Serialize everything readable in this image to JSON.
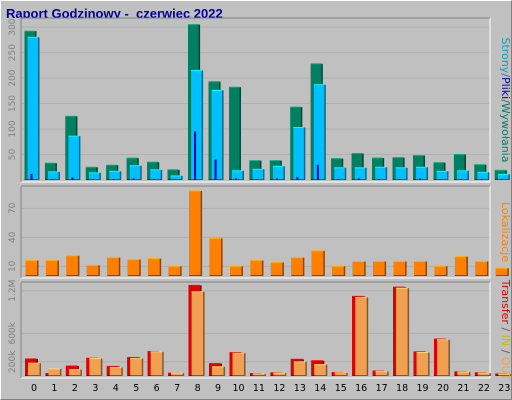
{
  "chart_data": {
    "type": "bar",
    "title": "Raport Godzinowy -  czerwiec 2022",
    "categories": [
      "0",
      "1",
      "2",
      "3",
      "4",
      "5",
      "6",
      "7",
      "8",
      "9",
      "10",
      "11",
      "12",
      "13",
      "14",
      "15",
      "16",
      "17",
      "18",
      "19",
      "20",
      "21",
      "22",
      "23"
    ],
    "panels": [
      {
        "id": "pages",
        "y_ticks": [
          {
            "v": 50,
            "label": "50"
          },
          {
            "v": 100,
            "label": "100"
          },
          {
            "v": 150,
            "label": "150"
          },
          {
            "v": 200,
            "label": "200"
          },
          {
            "v": 250,
            "label": "250"
          },
          {
            "v": 300,
            "label": "300"
          }
        ],
        "ylim": [
          0,
          312
        ],
        "series": [
          {
            "color": "#008060",
            "values": [
              292,
              33,
              125,
              25,
              29,
              43,
              35,
              20,
              305,
              193,
              182,
              38,
              38,
              143,
              228,
              42,
              52,
              43,
              44,
              48,
              34,
              50,
              30,
              19
            ]
          },
          {
            "color": "#00c0ff",
            "values": [
              280,
              16,
              86,
              14,
              17,
              28,
              20,
              8,
              215,
              176,
              18,
              21,
              27,
              103,
              187,
              24,
              24,
              25,
              24,
              25,
              17,
              18,
              15,
              11
            ]
          },
          {
            "color": "#0000c0",
            "values": [
              12,
              2,
              5,
              2,
              2,
              3,
              2,
              1,
              95,
              40,
              3,
              2,
              3,
              6,
              30,
              2,
              3,
              2,
              2,
              3,
              2,
              2,
              2,
              1
            ]
          }
        ]
      },
      {
        "id": "locations",
        "y_ticks": [
          {
            "v": 10,
            "label": "10"
          },
          {
            "v": 40,
            "label": "40"
          },
          {
            "v": 70,
            "label": "70"
          }
        ],
        "ylim": [
          0,
          90
        ],
        "series": [
          {
            "color": "#ff8000",
            "values": [
              16,
              16,
              21,
              11,
              19,
              17,
              18,
              10,
              88,
              39,
              10,
              16,
              14,
              19,
              26,
              10,
              15,
              15,
              15,
              15,
              10,
              20,
              15,
              8
            ]
          }
        ]
      },
      {
        "id": "transfer",
        "y_ticks": [
          {
            "v": 200,
            "label": "200k"
          },
          {
            "v": 600,
            "label": "600k"
          },
          {
            "v": 1200,
            "label": "1.2M"
          }
        ],
        "ylim": [
          0,
          1280
        ],
        "series": [
          {
            "color": "#e00000",
            "values": [
              240,
              35,
              140,
              250,
              135,
              260,
              345,
              40,
              1275,
              175,
              330,
              35,
              45,
              235,
              215,
              50,
              1120,
              70,
              1250,
              340,
              520,
              60,
              45,
              30
            ]
          },
          {
            "color": "#f0a050",
            "values": [
              180,
              100,
              90,
              245,
              120,
              245,
              340,
              40,
              1185,
              130,
              320,
              30,
              40,
              200,
              160,
              45,
              1105,
              65,
              1235,
              330,
              510,
              55,
              40,
              25
            ]
          }
        ]
      }
    ],
    "right_labels": [
      {
        "parts": [
          {
            "text": "Strony",
            "color": "#00a0c0"
          },
          {
            "text": "/",
            "color": "#606060"
          },
          {
            "text": "Pliki",
            "color": "#0000c0"
          },
          {
            "text": "/",
            "color": "#606060"
          },
          {
            "text": "Wywołania",
            "color": "#008060"
          }
        ]
      },
      {
        "parts": [
          {
            "text": "Lokalizacje",
            "color": "#ff8000"
          }
        ]
      },
      {
        "parts": [
          {
            "text": "Transfer",
            "color": "#e00000"
          },
          {
            "text": " / ",
            "color": "#606060"
          },
          {
            "text": "IN",
            "color": "#c0c000"
          },
          {
            "text": " / ",
            "color": "#606060"
          },
          {
            "text": "OUT",
            "color": "#f0a050"
          }
        ]
      }
    ]
  }
}
